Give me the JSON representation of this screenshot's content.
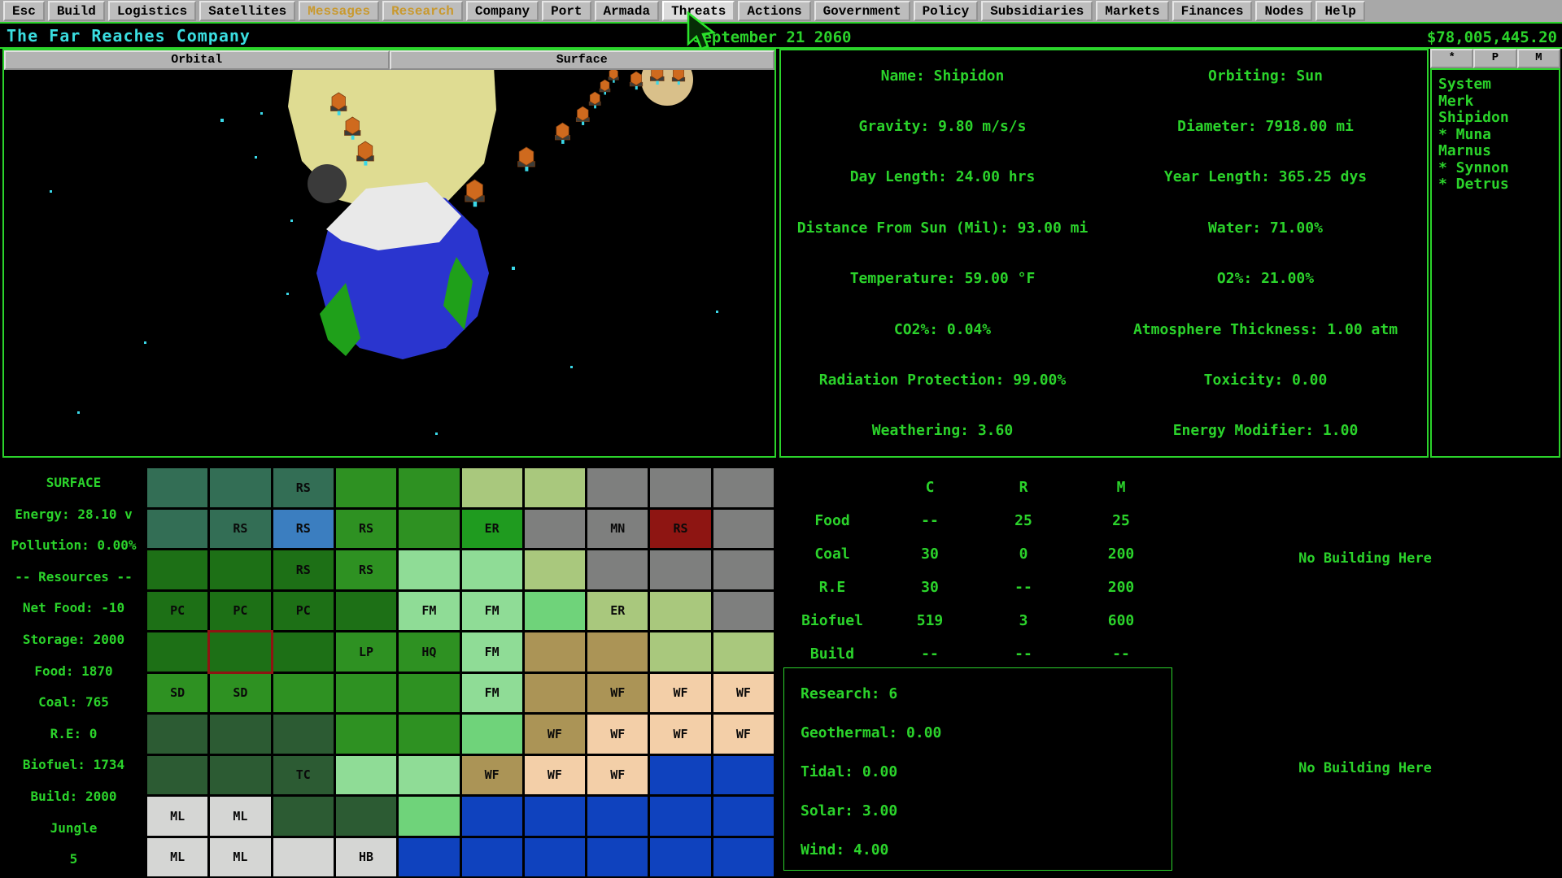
{
  "menu": {
    "items": [
      {
        "label": "Esc",
        "style": ""
      },
      {
        "label": "Build",
        "style": ""
      },
      {
        "label": "Logistics",
        "style": ""
      },
      {
        "label": "Satellites",
        "style": ""
      },
      {
        "label": "Messages",
        "style": "gold"
      },
      {
        "label": "Research",
        "style": "gold"
      },
      {
        "label": "Company",
        "style": ""
      },
      {
        "label": "Port",
        "style": ""
      },
      {
        "label": "Armada",
        "style": ""
      },
      {
        "label": "Threats",
        "style": "active"
      },
      {
        "label": "Actions",
        "style": ""
      },
      {
        "label": "Government",
        "style": ""
      },
      {
        "label": "Policy",
        "style": ""
      },
      {
        "label": "Subsidiaries",
        "style": ""
      },
      {
        "label": "Markets",
        "style": ""
      },
      {
        "label": "Finances",
        "style": ""
      },
      {
        "label": "Nodes",
        "style": ""
      },
      {
        "label": "Help",
        "style": ""
      }
    ]
  },
  "title_bar": {
    "company": "The Far Reaches Company",
    "date": "September 21 2060",
    "money": "$78,005,445.20"
  },
  "view_tabs": [
    {
      "label": "Orbital"
    },
    {
      "label": "Surface"
    }
  ],
  "planet_info": {
    "rows": [
      {
        "left": "Name: Shipidon",
        "right": "Orbiting: Sun"
      },
      {
        "left": "Gravity: 9.80 m/s/s",
        "right": "Diameter: 7918.00 mi"
      },
      {
        "left": "Day Length: 24.00 hrs",
        "right": "Year Length: 365.25 dys"
      },
      {
        "left": "Distance From Sun (Mil): 93.00 mi",
        "right": "Water: 71.00%"
      },
      {
        "left": "Temperature: 59.00 °F",
        "right": "O2%: 21.00%"
      },
      {
        "left": "CO2%: 0.04%",
        "right": "Atmosphere Thickness: 1.00 atm"
      },
      {
        "left": "Radiation Protection: 99.00%",
        "right": "Toxicity: 0.00"
      },
      {
        "left": "Weathering: 3.60",
        "right": "Energy Modifier: 1.00"
      }
    ]
  },
  "system_panel": {
    "tabs": [
      "*",
      "P",
      "M"
    ],
    "items": [
      "System",
      "Merk",
      "Shipidon",
      "* Muna",
      "Marnus",
      "* Synnon",
      "* Detrus"
    ]
  },
  "surface_stats": {
    "items": [
      "SURFACE",
      "Energy: 28.10 v",
      "Pollution: 0.00%",
      "-- Resources --",
      "Net Food: -10",
      "Storage: 2000",
      "Food: 1870",
      "Coal: 765",
      "R.E: 0",
      "Biofuel: 1734",
      "Build: 2000",
      "Jungle",
      "5"
    ]
  },
  "grid": {
    "terrain_colors": {
      "T": "#336e55",
      "G": "#2e9122",
      "E": "#1f9b1f",
      "D": "#1d7016",
      "F": "#2c5b33",
      "B": "#3b7ec0",
      "Y": "#7e7f7e",
      "R": "#8e1512",
      "P": "#a9c87d",
      "M": "#8fdc96",
      "N": "#6fd37a",
      "K": "#ab9456",
      "H": "#f3cfa8",
      "L": "#d5d6d4",
      "W": "#0f42be"
    },
    "rows": [
      [
        "T",
        "T",
        "T:RS",
        "G",
        "G",
        "P",
        "P",
        "Y",
        "Y",
        "Y"
      ],
      [
        "T",
        "T:RS",
        "B:RS",
        "G:RS",
        "G",
        "E:ER",
        "Y",
        "Y:MN",
        "R:RS",
        "Y"
      ],
      [
        "D",
        "D",
        "D:RS",
        "G:RS",
        "M",
        "M",
        "P",
        "Y",
        "Y",
        "Y"
      ],
      [
        "D:PC",
        "D:PC",
        "D:PC",
        "D",
        "M:FM",
        "M:FM",
        "N",
        "P:ER",
        "P",
        "Y"
      ],
      [
        "D",
        "D::sel",
        "D",
        "G:LP",
        "G:HQ",
        "M:FM",
        "K",
        "K",
        "P",
        "P"
      ],
      [
        "G:SD",
        "G:SD",
        "G",
        "G",
        "G",
        "M:FM",
        "K",
        "K:WF",
        "H:WF",
        "H:WF"
      ],
      [
        "F",
        "F",
        "F",
        "G",
        "G",
        "N",
        "K:WF",
        "H:WF",
        "H:WF",
        "H:WF"
      ],
      [
        "F",
        "F",
        "F:TC",
        "M",
        "M",
        "K:WF",
        "H:WF",
        "H:WF",
        "W",
        "W"
      ],
      [
        "L:ML",
        "L:ML",
        "F",
        "F",
        "N",
        "W",
        "W",
        "W",
        "W",
        "W"
      ],
      [
        "L:ML",
        "L:ML",
        "L",
        "L:HB",
        "W",
        "W",
        "W",
        "W",
        "W",
        "W"
      ]
    ]
  },
  "resource_table": {
    "headers": [
      "",
      "C",
      "R",
      "M"
    ],
    "rows": [
      [
        "Food",
        "--",
        "25",
        "25"
      ],
      [
        "Coal",
        "30",
        "0",
        "200"
      ],
      [
        "R.E",
        "30",
        "--",
        "200"
      ],
      [
        "Biofuel",
        "519",
        "3",
        "600"
      ],
      [
        "Build",
        "--",
        "--",
        "--"
      ]
    ]
  },
  "research_panel": {
    "lines": [
      "Research: 6",
      "Geothermal: 0.00",
      "Tidal: 0.00",
      "Solar: 3.00",
      "Wind: 4.00"
    ]
  },
  "labels": {
    "no_building": "No Building Here"
  },
  "colors": {
    "green": "#2bd32b",
    "cyan": "#3adde0",
    "gold": "#c9992e",
    "border": "#2bd32b",
    "selected_tile": "#8e1512"
  }
}
